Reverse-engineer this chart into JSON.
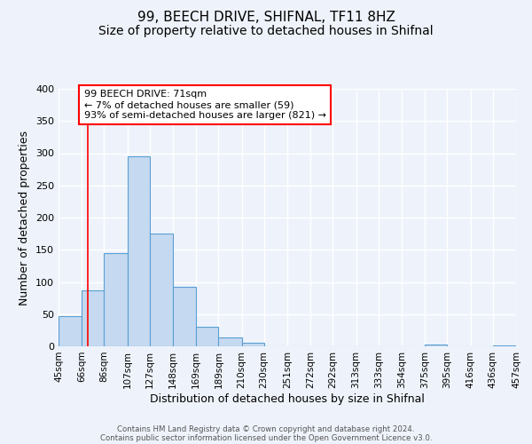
{
  "title1": "99, BEECH DRIVE, SHIFNAL, TF11 8HZ",
  "title2": "Size of property relative to detached houses in Shifnal",
  "xlabel": "Distribution of detached houses by size in Shifnal",
  "ylabel": "Number of detached properties",
  "bar_left_edges": [
    45,
    66,
    86,
    107,
    127,
    148,
    169,
    189,
    210,
    230,
    251,
    272,
    292,
    313,
    333,
    354,
    375,
    395,
    416,
    436
  ],
  "bar_widths": [
    21,
    20,
    21,
    20,
    21,
    21,
    20,
    21,
    20,
    21,
    21,
    20,
    21,
    20,
    21,
    21,
    20,
    21,
    20,
    21
  ],
  "bar_heights": [
    47,
    87,
    145,
    295,
    175,
    92,
    30,
    14,
    5,
    0,
    0,
    0,
    0,
    0,
    0,
    0,
    3,
    0,
    0,
    2
  ],
  "bar_color": "#c5d9f0",
  "bar_edge_color": "#5a9fd4",
  "tick_labels": [
    "45sqm",
    "66sqm",
    "86sqm",
    "107sqm",
    "127sqm",
    "148sqm",
    "169sqm",
    "189sqm",
    "210sqm",
    "230sqm",
    "251sqm",
    "272sqm",
    "292sqm",
    "313sqm",
    "333sqm",
    "354sqm",
    "375sqm",
    "395sqm",
    "416sqm",
    "436sqm",
    "457sqm"
  ],
  "tick_positions": [
    45,
    66,
    86,
    107,
    127,
    148,
    169,
    189,
    210,
    230,
    251,
    272,
    292,
    313,
    333,
    354,
    375,
    395,
    416,
    436,
    457
  ],
  "ylim": [
    0,
    400
  ],
  "yticks": [
    0,
    50,
    100,
    150,
    200,
    250,
    300,
    350,
    400
  ],
  "xlim": [
    45,
    457
  ],
  "red_line_x": 71,
  "annotation_title": "99 BEECH DRIVE: 71sqm",
  "annotation_line1": "← 7% of detached houses are smaller (59)",
  "annotation_line2": "93% of semi-detached houses are larger (821) →",
  "footer1": "Contains HM Land Registry data © Crown copyright and database right 2024.",
  "footer2": "Contains public sector information licensed under the Open Government Licence v3.0.",
  "background_color": "#eef3fb",
  "grid_color": "#ffffff",
  "title1_fontsize": 11,
  "title2_fontsize": 10,
  "axis_label_fontsize": 9,
  "tick_fontsize": 7.5,
  "ylabel_fontsize": 9
}
